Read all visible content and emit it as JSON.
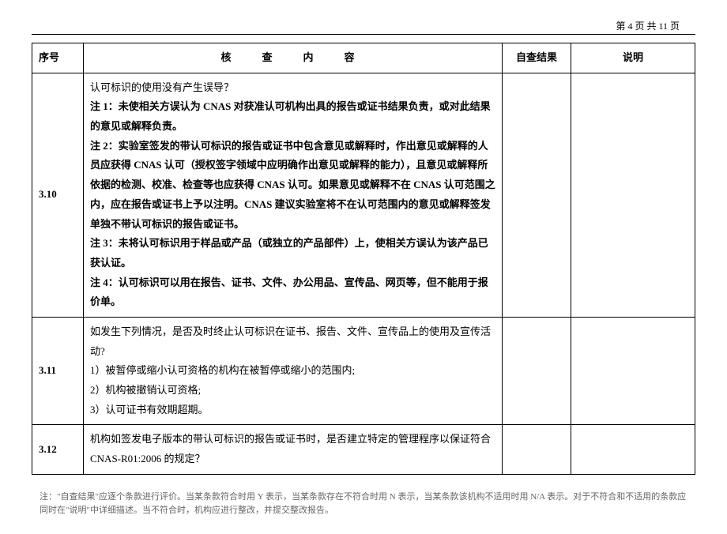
{
  "pageHeader": "第 4 页 共 11 页",
  "headers": {
    "seq": "序号",
    "content": "核　查　内　容",
    "result": "自查结果",
    "note": "说明"
  },
  "rows": [
    {
      "seq": "3.10",
      "content": "认可标识的使用没有产生误导？\n<b>注 1：未使相关方误认为 CNAS 对获准认可机构出具的报告或证书结果负责，或对此结果的意见或解释负责。</b>\n<b>注 2：实验室签发的带认可标识的报告或证书中包含意见或解释时，作出意见或解释的人员应获得 CNAS 认可（授权签字领域中应明确作出意见或解释的能力），且意见或解释所依据的检测、校准、检查等也应获得 CNAS 认可。如果意见或解释不在 CNAS 认可范围之内，应在报告或证书上予以注明。CNAS 建议实验室将不在认可范围内的意见或解释签发单独不带认可标识的报告或证书。</b>\n<b>注 3：未将认可标识用于样品或产品（或独立的产品部件）上，使相关方误认为该产品已获认证。</b>\n<b>注 4：认可标识可以用在报告、证书、文件、办公用品、宣传品、网页等，但不能用于报价单。</b>",
      "result": "",
      "note": ""
    },
    {
      "seq": "3.11",
      "content": "如发生下列情况，是否及时终止认可标识在证书、报告、文件、宣传品上的使用及宣传活动?\n1）被暂停或缩小认可资格的机构在被暂停或缩小的范围内;\n2）机构被撤销认可资格;\n3）认可证书有效期超期。",
      "result": "",
      "note": ""
    },
    {
      "seq": "3.12",
      "content": "机构如签发电子版本的带认可标识的报告或证书时，是否建立特定的管理程序以保证符合CNAS-R01:2006 的规定？",
      "result": "",
      "note": ""
    }
  ],
  "footnote": "注：\"自查结果\"应逐个条款进行评价。当某条款符合时用 Y 表示，当某条款存在不符合时用 N 表示，当某条款该机构不适用时用 N/A 表示。对于不符合和不适用的条款应同时在\"说明\"中详细描述。当不符合时，机构应进行整改，并提交整改报告。"
}
